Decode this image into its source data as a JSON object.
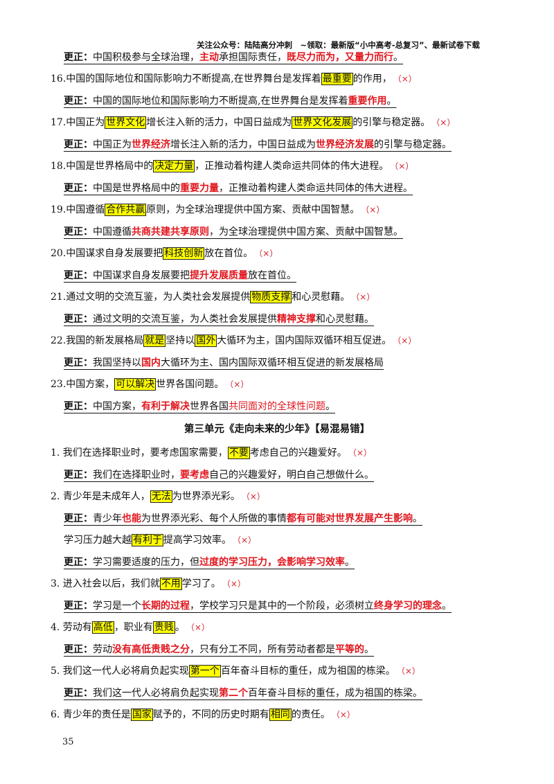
{
  "header": "关注公众号：陆陆高分冲刺　~领取：最新版“小中高考-总复习”、最新试卷下载",
  "page_number": "35",
  "section_title": "第三单元《走向未来的少年》【易混易错】",
  "labels": {
    "fix": "更正：",
    "wrong_mark": "（×）"
  },
  "s0": {
    "fix": [
      [
        "t",
        "中国积极参与全球治理，"
      ],
      [
        "r",
        "主动"
      ],
      [
        "t",
        "承担国际责任，"
      ],
      [
        "r",
        "既尽力而为，又量力而行"
      ],
      [
        "t",
        "。"
      ]
    ]
  },
  "s16": {
    "q": [
      [
        "t",
        "16.中国的国际地位和国际影响力不断提高,在世界舞台是发挥着"
      ],
      [
        "h",
        "最重要"
      ],
      [
        "t",
        "的作用，"
      ]
    ],
    "fix": [
      [
        "t",
        "中国的国际地位和国际影响力不断提高,在世界舞台是发挥着"
      ],
      [
        "r",
        "重要作用"
      ],
      [
        "t",
        "。"
      ]
    ]
  },
  "s17": {
    "q": [
      [
        "t",
        "17.中国正为"
      ],
      [
        "h",
        "世界文化"
      ],
      [
        "t",
        "增长注入新的活力，中国日益成为"
      ],
      [
        "h",
        "世界文化发展"
      ],
      [
        "t",
        "的引擎与稳定器。"
      ]
    ],
    "fix": [
      [
        "t",
        "中国正为"
      ],
      [
        "r",
        "世界经济"
      ],
      [
        "t",
        "增长注入新的活力，中国日益成为"
      ],
      [
        "r",
        "世界经济发展"
      ],
      [
        "t",
        "的引擎与稳定器。"
      ]
    ]
  },
  "s18": {
    "q": [
      [
        "t",
        "18.中国是世界格局中的"
      ],
      [
        "h",
        "决定力量"
      ],
      [
        "t",
        "，正推动着构建人类命运共同体的伟大进程。"
      ]
    ],
    "fix": [
      [
        "t",
        "中国是世界格局中的"
      ],
      [
        "r",
        "重要力量"
      ],
      [
        "t",
        "，正推动着构建人类命运共同体的伟大进程。"
      ]
    ]
  },
  "s19": {
    "q": [
      [
        "t",
        "19.中国遵循"
      ],
      [
        "h",
        "合作共赢"
      ],
      [
        "t",
        "原则，为全球治理提供中国方案、贡献中国智慧。"
      ]
    ],
    "fix": [
      [
        "t",
        "中国遵循"
      ],
      [
        "r",
        "共商共建共享原则"
      ],
      [
        "t",
        "，为全球治理提供中国方案、贡献中国智慧。"
      ]
    ]
  },
  "s20": {
    "q": [
      [
        "t",
        "20.中国谋求自身发展要把"
      ],
      [
        "h",
        "科技创新"
      ],
      [
        "t",
        "放在首位。"
      ]
    ],
    "fix": [
      [
        "t",
        "中国谋求自身发展要把"
      ],
      [
        "r",
        "提升发展质量"
      ],
      [
        "t",
        "放在首位。"
      ]
    ]
  },
  "s21": {
    "q": [
      [
        "t",
        "21.通过文明的交流互鉴，为人类社会发展提供"
      ],
      [
        "h",
        "物质支撑"
      ],
      [
        "t",
        "和心灵慰藉。"
      ]
    ],
    "fix": [
      [
        "t",
        "通过文明的交流互鉴，为人类社会发展提供"
      ],
      [
        "r",
        "精神支撑"
      ],
      [
        "t",
        "和心灵慰藉。"
      ]
    ]
  },
  "s22": {
    "q": [
      [
        "t",
        "22.我国的新发展格局"
      ],
      [
        "h",
        "就是"
      ],
      [
        "t",
        "坚持以"
      ],
      [
        "h",
        "国外"
      ],
      [
        "t",
        "大循环为主，国内国际双循环相互促进。"
      ]
    ],
    "fix": [
      [
        "t",
        "我国坚持以"
      ],
      [
        "r",
        "国内"
      ],
      [
        "t",
        "大循环为主、国内国际双循环相互促进的新发展格局"
      ]
    ]
  },
  "s23": {
    "q": [
      [
        "t",
        "23.中国方案，"
      ],
      [
        "h",
        "可以解决"
      ],
      [
        "t",
        "世界各国问题。"
      ]
    ],
    "fix": [
      [
        "t",
        "中国方案，"
      ],
      [
        "r",
        "有利于解决"
      ],
      [
        "t",
        "世界各国"
      ],
      [
        "n",
        "共同面对的全球性问题"
      ],
      [
        "t",
        "。"
      ]
    ]
  },
  "u1": {
    "q": [
      [
        "t",
        "1.  我们在选择职业时，要考虑国家需要，"
      ],
      [
        "h",
        "不要"
      ],
      [
        "t",
        "考虑自己的兴趣爱好。"
      ]
    ],
    "fix": [
      [
        "t",
        "我们在选择职业时，"
      ],
      [
        "r",
        "要考虑"
      ],
      [
        "t",
        "自己的兴趣爱好，明白自己想做什么。"
      ]
    ]
  },
  "u2": {
    "q": [
      [
        "t",
        "2.  青少年是未成年人，"
      ],
      [
        "h",
        "无法"
      ],
      [
        "t",
        "为世界添光彩。"
      ]
    ],
    "fix": [
      [
        "t",
        "青少年"
      ],
      [
        "r",
        "也能"
      ],
      [
        "t",
        "为世界添光彩、每个人所做的事情"
      ],
      [
        "r",
        "都有可能对世界发展产生影响"
      ],
      [
        "t",
        "。"
      ]
    ],
    "q2": [
      [
        "t",
        "学习压力越大越"
      ],
      [
        "h",
        "有利于"
      ],
      [
        "t",
        "提高学习效率。"
      ]
    ],
    "fix2": [
      [
        "t",
        "学习需要适度的压力，但"
      ],
      [
        "r",
        "过度的学习压力，会影响学习效率"
      ],
      [
        "t",
        "。"
      ]
    ]
  },
  "u3": {
    "q": [
      [
        "t",
        "3.  进入社会以后，我们就"
      ],
      [
        "h",
        "不用"
      ],
      [
        "t",
        "学习了。"
      ]
    ],
    "fix": [
      [
        "t",
        "学习是一个"
      ],
      [
        "r",
        "长期的过程"
      ],
      [
        "t",
        "，学校学习只是其中的一个阶段，必须树立"
      ],
      [
        "r",
        "终身学习的理念"
      ],
      [
        "t",
        "。"
      ]
    ]
  },
  "u4": {
    "q": [
      [
        "t",
        "4.  劳动有"
      ],
      [
        "h",
        "高低"
      ],
      [
        "t",
        "，职业有"
      ],
      [
        "h",
        "贵贱"
      ],
      [
        "t",
        "。"
      ]
    ],
    "fix": [
      [
        "t",
        "劳动"
      ],
      [
        "r",
        "没有高低贵贱之分"
      ],
      [
        "t",
        "，只有分工不同，所有劳动者都是"
      ],
      [
        "r",
        "平等的"
      ],
      [
        "t",
        "。"
      ]
    ]
  },
  "u5": {
    "q": [
      [
        "t",
        "5.  我们这一代人必将肩负起实现"
      ],
      [
        "h",
        "第一个"
      ],
      [
        "t",
        "百年奋斗目标的重任，成为祖国的栋梁。"
      ]
    ],
    "fix": [
      [
        "t",
        "我们这一代人必将肩负起实现"
      ],
      [
        "r",
        "第二个"
      ],
      [
        "t",
        "百年奋斗目标的重任，成为祖国的栋梁。"
      ]
    ]
  },
  "u6": {
    "q": [
      [
        "t",
        "6.  青少年的责任是"
      ],
      [
        "h",
        "国家"
      ],
      [
        "t",
        "赋予的，不同的历史时期有"
      ],
      [
        "h",
        "相同"
      ],
      [
        "t",
        "的责任。"
      ]
    ]
  }
}
